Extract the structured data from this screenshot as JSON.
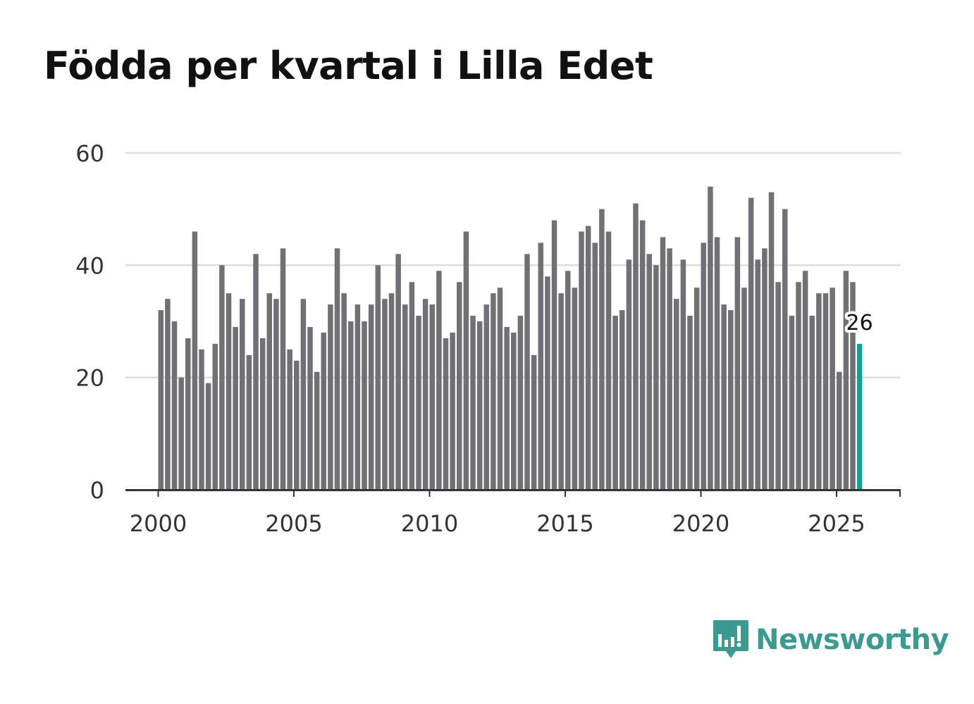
{
  "title": "Födda per kvartal i Lilla Edet",
  "brand": {
    "name": "Newsworthy",
    "logo_icon": "bar-chart-speech-bubble-icon",
    "color": "#3d9a90"
  },
  "colors": {
    "bar": "#717075",
    "highlight": "#1a9e94",
    "grid": "#dddddd",
    "axis": "#333333"
  },
  "chart_data": {
    "type": "bar",
    "title": "Födda per kvartal i Lilla Edet",
    "xlabel": "",
    "ylabel": "",
    "ylim": [
      0,
      60
    ],
    "yticks": [
      0,
      20,
      40,
      60
    ],
    "xticks": [
      2000,
      2005,
      2010,
      2015,
      2020,
      2025
    ],
    "grid": true,
    "series": [
      {
        "name": "Födda",
        "start": {
          "year": 2000,
          "quarter": 1
        },
        "values": [
          32,
          34,
          30,
          20,
          27,
          46,
          25,
          19,
          26,
          40,
          35,
          29,
          34,
          24,
          42,
          27,
          35,
          34,
          43,
          25,
          23,
          34,
          29,
          21,
          28,
          33,
          43,
          35,
          30,
          33,
          30,
          33,
          40,
          34,
          35,
          42,
          33,
          37,
          31,
          34,
          33,
          39,
          27,
          28,
          37,
          46,
          31,
          30,
          33,
          35,
          36,
          29,
          28,
          31,
          42,
          24,
          44,
          38,
          48,
          35,
          39,
          36,
          46,
          47,
          44,
          50,
          46,
          31,
          32,
          41,
          51,
          48,
          42,
          40,
          45,
          43,
          34,
          41,
          31,
          36,
          44,
          54,
          45,
          33,
          32,
          45,
          36,
          52,
          41,
          43,
          53,
          37,
          50,
          31,
          37,
          39,
          31,
          35,
          35,
          36,
          21,
          39,
          37,
          26
        ]
      }
    ],
    "highlight": {
      "index": 103,
      "label": "26"
    }
  }
}
